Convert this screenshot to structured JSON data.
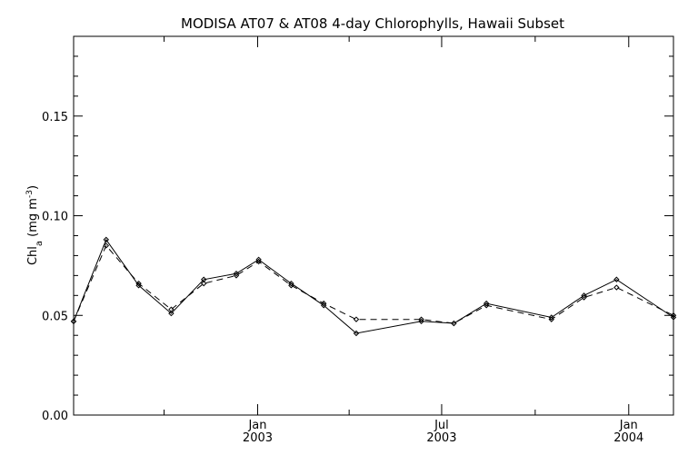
{
  "chart_data": {
    "type": "line",
    "title": "MODISA AT07 & AT08 4-day Chlorophylls, Hawaii Subset",
    "ylabel": {
      "main": "Chl",
      "sub": "a",
      "unit_pre": " (mg m",
      "unit_sup": "-3",
      "unit_post": ")"
    },
    "xlabel": "",
    "ylim": [
      0.0,
      0.19
    ],
    "yticks": [
      {
        "value": 0.0,
        "label": "0.00"
      },
      {
        "value": 0.05,
        "label": "0.05"
      },
      {
        "value": 0.1,
        "label": "0.10"
      },
      {
        "value": 0.15,
        "label": "0.15"
      }
    ],
    "y_minor_step": 0.01,
    "xlim": [
      "2002-07-04",
      "2004-02-14"
    ],
    "xticks": [
      {
        "date": "2003-01-01",
        "month": "Jan",
        "year": "2003"
      },
      {
        "date": "2003-07-01",
        "month": "Jul",
        "year": "2003"
      },
      {
        "date": "2004-01-01",
        "month": "Jan",
        "year": "2004"
      }
    ],
    "x_minor_ticks": [
      "2002-10-01",
      "2003-04-01",
      "2003-10-01"
    ],
    "grid": false,
    "legend": "none",
    "series": [
      {
        "line_style": "solid",
        "color": "#000000",
        "points": [
          [
            "2002-07-04",
            0.047
          ],
          [
            "2002-08-05",
            0.088
          ],
          [
            "2002-09-06",
            0.065
          ],
          [
            "2002-10-08",
            0.051
          ],
          [
            "2002-11-09",
            0.068
          ],
          [
            "2002-12-11",
            0.071
          ],
          [
            "2003-01-02",
            0.078
          ],
          [
            "2003-02-03",
            0.066
          ],
          [
            "2003-03-07",
            0.055
          ],
          [
            "2003-04-08",
            0.041
          ],
          [
            "2003-06-11",
            0.047
          ],
          [
            "2003-07-13",
            0.046
          ],
          [
            "2003-08-14",
            0.056
          ],
          [
            "2003-10-17",
            0.049
          ],
          [
            "2003-11-18",
            0.06
          ],
          [
            "2003-12-20",
            0.068
          ],
          [
            "2004-02-14",
            0.049
          ]
        ]
      },
      {
        "line_style": "dashed",
        "color": "#000000",
        "points": [
          [
            "2002-07-04",
            0.047
          ],
          [
            "2002-08-05",
            0.085
          ],
          [
            "2002-09-06",
            0.066
          ],
          [
            "2002-10-08",
            0.053
          ],
          [
            "2002-11-09",
            0.066
          ],
          [
            "2002-12-11",
            0.07
          ],
          [
            "2003-01-02",
            0.077
          ],
          [
            "2003-02-03",
            0.065
          ],
          [
            "2003-03-07",
            0.056
          ],
          [
            "2003-04-08",
            0.048
          ],
          [
            "2003-06-11",
            0.048
          ],
          [
            "2003-07-13",
            0.046
          ],
          [
            "2003-08-14",
            0.055
          ],
          [
            "2003-10-17",
            0.048
          ],
          [
            "2003-11-18",
            0.059
          ],
          [
            "2003-12-20",
            0.064
          ],
          [
            "2004-02-14",
            0.05
          ]
        ]
      }
    ]
  }
}
